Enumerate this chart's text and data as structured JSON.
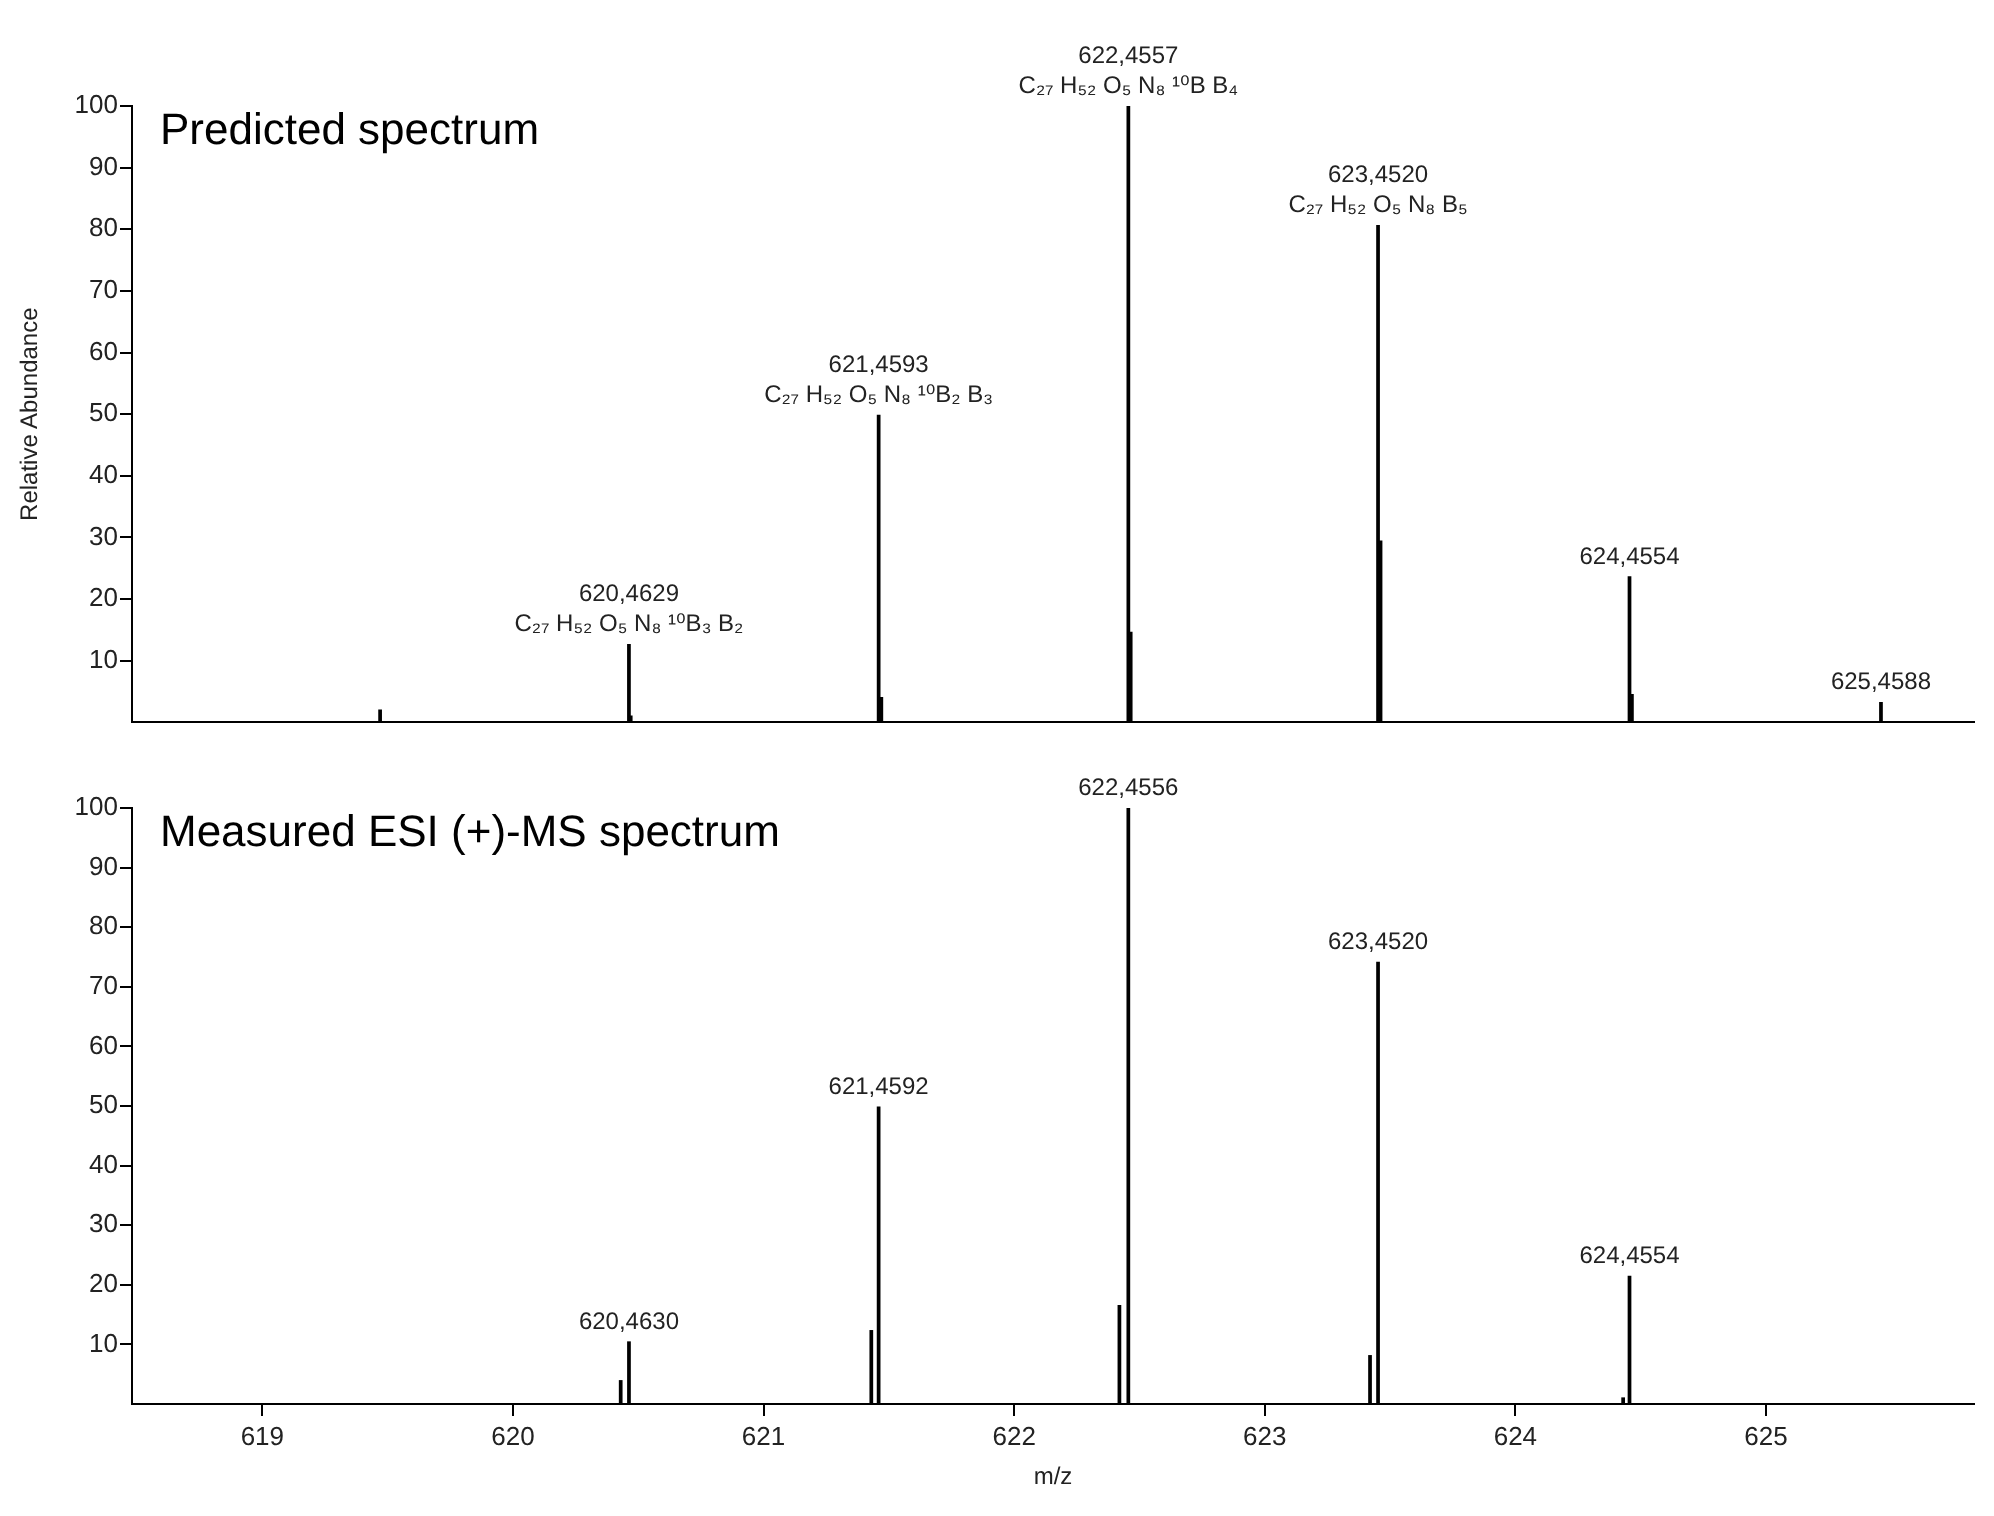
{
  "chart_data": [
    {
      "type": "bar",
      "title": "Predicted spectrum",
      "ylabel": "Relative Abundance",
      "color": "#000000",
      "x": [
        619.47,
        620.4629,
        620.47,
        621.4593,
        621.47,
        622.4557,
        622.465,
        623.452,
        623.462,
        624.4554,
        624.465,
        625.4588
      ],
      "values": [
        2,
        12.6,
        1,
        49.8,
        4,
        100,
        14.6,
        80.6,
        29.4,
        23.6,
        4.5,
        3.2
      ],
      "annotations": [
        {
          "text": "620,4629\nC₂₇ H₅₂ O₅ N₈ ¹⁰B₃ B₂",
          "x": 620.4629,
          "y": 12.6
        },
        {
          "text": "621,4593\nC₂₇ H₅₂ O₅ N₈ ¹⁰B₂ B₃",
          "x": 621.4593,
          "y": 49.8
        },
        {
          "text": "622,4557\nC₂₇ H₅₂ O₅ N₈ ¹⁰B B₄",
          "x": 622.4557,
          "y": 100
        },
        {
          "text": "623,4520\nC₂₇ H₅₂ O₅ N₈ B₅",
          "x": 623.452,
          "y": 80.6
        },
        {
          "text": "624,4554",
          "x": 624.4554,
          "y": 23.6
        },
        {
          "text": "625,4588",
          "x": 625.4588,
          "y": 3.2
        }
      ],
      "xlim": [
        618.48,
        625.83
      ],
      "ylim": [
        0,
        100
      ],
      "yticks": [
        10,
        20,
        30,
        40,
        50,
        60,
        70,
        80,
        90,
        100
      ],
      "tick_labels": "y",
      "grid": false,
      "legend": false
    },
    {
      "type": "bar",
      "title": "Measured ESI (+)-MS spectrum",
      "xlabel": "m/z",
      "color": "#000000",
      "x": [
        620.43,
        620.463,
        621.43,
        621.4592,
        622.42,
        622.4556,
        623.42,
        623.452,
        624.43,
        624.4554
      ],
      "values": [
        3.9,
        10.4,
        12.3,
        49.8,
        16.5,
        100,
        8.1,
        74.1,
        1,
        21.4
      ],
      "annotations": [
        {
          "text": "620,4630",
          "x": 620.463,
          "y": 10.4
        },
        {
          "text": "621,4592",
          "x": 621.4592,
          "y": 49.8
        },
        {
          "text": "622,4556",
          "x": 622.4556,
          "y": 100
        },
        {
          "text": "623,4520",
          "x": 623.452,
          "y": 74.1
        },
        {
          "text": "624,4554",
          "x": 624.4554,
          "y": 21.4
        }
      ],
      "xlim": [
        618.48,
        625.83
      ],
      "ylim": [
        0,
        100
      ],
      "xticks": [
        619,
        620,
        621,
        622,
        623,
        624,
        625
      ],
      "yticks": [
        10,
        20,
        30,
        40,
        50,
        60,
        70,
        80,
        90,
        100
      ],
      "grid": false,
      "legend": false
    }
  ]
}
